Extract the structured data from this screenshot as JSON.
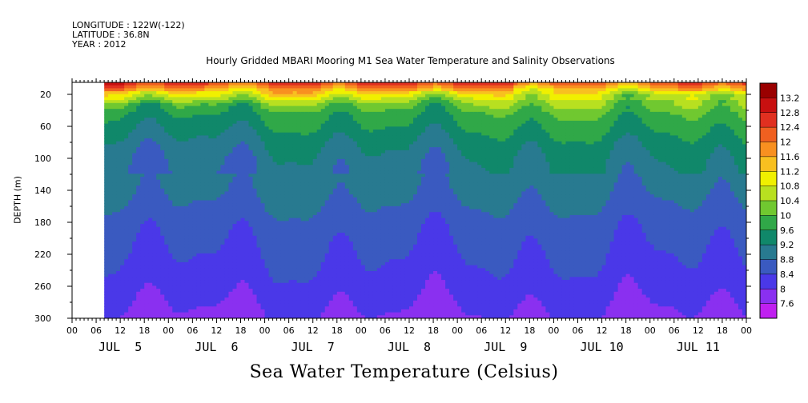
{
  "header": {
    "longitude": "LONGITUDE : 122W(-122)",
    "latitude": "LATITUDE : 36.8N",
    "year": "YEAR : 2012"
  },
  "chart_data": {
    "type": "heatmap",
    "title": "Hourly Gridded MBARI Mooring M1 Sea Water Temperature and Salinity Observations",
    "bottom_title": "Sea Water Temperature (Celsius)",
    "ylabel": "DEPTH (m)",
    "y_ticks": [
      20,
      60,
      100,
      140,
      180,
      220,
      260,
      300
    ],
    "ylim": [
      300,
      5
    ],
    "x_hour_ticks": [
      "00",
      "06",
      "12",
      "18",
      "00",
      "06",
      "12",
      "18",
      "00",
      "06",
      "12",
      "18",
      "00",
      "06",
      "12",
      "18",
      "00",
      "06",
      "12",
      "18",
      "00",
      "06",
      "12",
      "18",
      "00",
      "06",
      "12",
      "18",
      "00"
    ],
    "x_day_labels": [
      "JUL  5",
      "JUL  6",
      "JUL  7",
      "JUL  8",
      "JUL  9",
      "JUL 10",
      "JUL 11"
    ],
    "data_start_hour": 8,
    "total_hours": 168,
    "colorbar": {
      "levels": [
        13.2,
        12.8,
        12.4,
        12,
        11.6,
        11.2,
        10.8,
        10.4,
        10,
        9.6,
        9.2,
        8.8,
        8.4,
        8,
        7.6
      ],
      "colors": [
        "#9a0000",
        "#c81010",
        "#e03020",
        "#f06020",
        "#f89020",
        "#f8c020",
        "#f0f000",
        "#b8e020",
        "#70c830",
        "#30a848",
        "#10886a",
        "#287a90",
        "#3a5ac0",
        "#4a38e8",
        "#8a30f0",
        "#c020f0"
      ]
    },
    "temperature_profile": [
      {
        "depth": 5,
        "temp": 12.6
      },
      {
        "depth": 12,
        "temp": 11.8
      },
      {
        "depth": 20,
        "temp": 11.0
      },
      {
        "depth": 30,
        "temp": 10.3
      },
      {
        "depth": 45,
        "temp": 9.8
      },
      {
        "depth": 60,
        "temp": 9.6
      },
      {
        "depth": 80,
        "temp": 9.3
      },
      {
        "depth": 100,
        "temp": 9.1
      },
      {
        "depth": 140,
        "temp": 8.9
      },
      {
        "depth": 180,
        "temp": 8.6
      },
      {
        "depth": 220,
        "temp": 8.4
      },
      {
        "depth": 260,
        "temp": 8.2
      },
      {
        "depth": 300,
        "temp": 7.9
      }
    ]
  }
}
